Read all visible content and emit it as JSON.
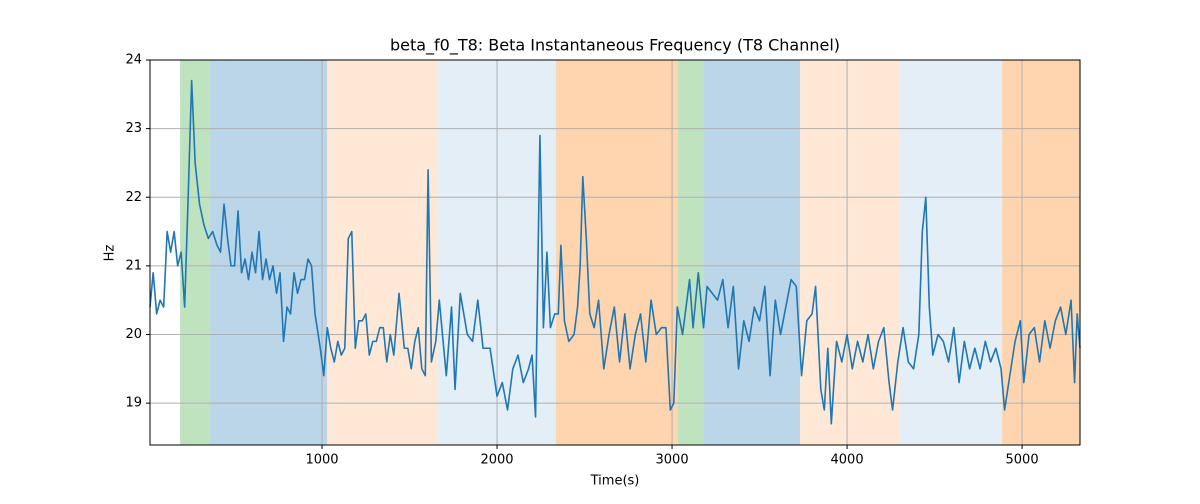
{
  "chart_data": {
    "type": "line",
    "title": "beta_f0_T8: Beta Instantaneous Frequency (T8 Channel)",
    "x_label": "Time(s)",
    "y_label": "Hz",
    "xlim": [
      17,
      5331
    ],
    "ylim": [
      18.39,
      24
    ],
    "xticks": [
      1000,
      2000,
      3000,
      4000,
      5000
    ],
    "yticks": [
      19,
      20,
      21,
      22,
      23,
      24
    ],
    "grid": true,
    "spans": [
      {
        "start": 189,
        "end": 360,
        "color": "#2ca02c",
        "opacity": 0.3
      },
      {
        "start": 360,
        "end": 1029,
        "color": "#1f77b4",
        "opacity": 0.3
      },
      {
        "start": 1029,
        "end": 1663,
        "color": "#ff7f0e",
        "opacity": 0.17
      },
      {
        "start": 1663,
        "end": 2337,
        "color": "#1f77b4",
        "opacity": 0.12
      },
      {
        "start": 2337,
        "end": 3034,
        "color": "#ff7f0e",
        "opacity": 0.33
      },
      {
        "start": 3034,
        "end": 3183,
        "color": "#2ca02c",
        "opacity": 0.3
      },
      {
        "start": 3183,
        "end": 3731,
        "color": "#1f77b4",
        "opacity": 0.3
      },
      {
        "start": 3731,
        "end": 4303,
        "color": "#ff7f0e",
        "opacity": 0.17
      },
      {
        "start": 4303,
        "end": 4886,
        "color": "#1f77b4",
        "opacity": 0.12
      },
      {
        "start": 4886,
        "end": 5331,
        "color": "#ff7f0e",
        "opacity": 0.33
      }
    ],
    "series": [
      {
        "name": "beta_f0_T8",
        "color": "#1f77b4",
        "x": [
          17,
          35,
          55,
          75,
          95,
          115,
          135,
          155,
          175,
          195,
          215,
          235,
          255,
          275,
          300,
          325,
          350,
          375,
          400,
          420,
          440,
          460,
          480,
          500,
          520,
          540,
          560,
          580,
          600,
          620,
          640,
          660,
          680,
          700,
          720,
          740,
          760,
          780,
          800,
          820,
          840,
          860,
          880,
          900,
          920,
          940,
          960,
          990,
          1010,
          1030,
          1050,
          1070,
          1090,
          1110,
          1130,
          1150,
          1170,
          1190,
          1210,
          1230,
          1250,
          1270,
          1290,
          1310,
          1330,
          1350,
          1370,
          1390,
          1410,
          1440,
          1470,
          1490,
          1510,
          1530,
          1550,
          1570,
          1590,
          1606,
          1625,
          1650,
          1670,
          1710,
          1740,
          1760,
          1790,
          1830,
          1860,
          1890,
          1920,
          1960,
          2000,
          2030,
          2060,
          2090,
          2120,
          2150,
          2180,
          2200,
          2220,
          2245,
          2265,
          2285,
          2305,
          2330,
          2350,
          2365,
          2385,
          2410,
          2440,
          2460,
          2475,
          2490,
          2510,
          2530,
          2555,
          2580,
          2610,
          2640,
          2670,
          2700,
          2730,
          2760,
          2790,
          2820,
          2850,
          2880,
          2910,
          2940,
          2965,
          2990,
          3010,
          3030,
          3060,
          3080,
          3100,
          3120,
          3150,
          3180,
          3200,
          3230,
          3260,
          3290,
          3320,
          3350,
          3380,
          3410,
          3440,
          3470,
          3500,
          3530,
          3560,
          3590,
          3620,
          3650,
          3680,
          3710,
          3740,
          3770,
          3800,
          3820,
          3850,
          3870,
          3890,
          3910,
          3940,
          3970,
          4000,
          4030,
          4060,
          4090,
          4120,
          4150,
          4180,
          4210,
          4240,
          4260,
          4290,
          4320,
          4350,
          4380,
          4410,
          4430,
          4450,
          4470,
          4490,
          4520,
          4550,
          4580,
          4610,
          4640,
          4670,
          4700,
          4730,
          4760,
          4790,
          4820,
          4850,
          4880,
          4900,
          4930,
          4960,
          4990,
          5010,
          5040,
          5070,
          5100,
          5130,
          5160,
          5190,
          5220,
          5250,
          5280,
          5300,
          5315,
          5331
        ],
        "values": [
          20.4,
          20.9,
          20.3,
          20.5,
          20.4,
          21.5,
          21.2,
          21.5,
          21.0,
          21.2,
          20.4,
          22.0,
          23.7,
          22.5,
          21.9,
          21.6,
          21.4,
          21.5,
          21.3,
          21.2,
          21.9,
          21.4,
          21.0,
          21.0,
          21.8,
          20.9,
          21.1,
          20.8,
          21.2,
          20.9,
          21.5,
          20.8,
          21.1,
          20.8,
          21.0,
          20.6,
          20.9,
          19.9,
          20.4,
          20.3,
          20.9,
          20.6,
          20.8,
          20.8,
          21.1,
          21.0,
          20.3,
          19.8,
          19.4,
          20.1,
          19.8,
          19.6,
          19.9,
          19.7,
          19.8,
          21.4,
          21.5,
          19.8,
          20.2,
          20.2,
          20.3,
          19.7,
          19.9,
          19.9,
          20.1,
          20.1,
          19.6,
          20.0,
          19.7,
          20.6,
          19.8,
          19.8,
          19.5,
          19.9,
          20.1,
          19.5,
          19.4,
          22.4,
          19.6,
          19.9,
          20.5,
          19.4,
          20.4,
          19.2,
          20.6,
          20.0,
          19.9,
          20.5,
          19.8,
          19.8,
          19.1,
          19.3,
          18.9,
          19.5,
          19.7,
          19.3,
          19.5,
          19.7,
          18.8,
          22.9,
          20.1,
          21.2,
          20.1,
          20.3,
          20.3,
          21.3,
          20.2,
          19.9,
          20.0,
          20.4,
          21.0,
          22.3,
          21.4,
          20.3,
          20.1,
          20.5,
          19.5,
          20.0,
          20.4,
          19.6,
          20.3,
          19.5,
          20.0,
          20.3,
          19.6,
          20.5,
          20.0,
          20.1,
          20.1,
          18.9,
          19.0,
          20.4,
          20.0,
          20.4,
          20.8,
          20.1,
          20.9,
          20.1,
          20.7,
          20.6,
          20.5,
          20.8,
          20.1,
          20.7,
          19.5,
          20.2,
          19.9,
          20.4,
          20.2,
          20.7,
          19.4,
          20.5,
          20.0,
          20.4,
          20.8,
          20.7,
          19.4,
          20.2,
          20.3,
          20.7,
          19.2,
          18.9,
          19.8,
          18.7,
          19.9,
          19.6,
          20.0,
          19.5,
          19.9,
          19.6,
          20.0,
          19.5,
          19.9,
          20.1,
          19.3,
          18.9,
          19.6,
          20.1,
          19.6,
          19.5,
          20.0,
          21.5,
          22.0,
          20.4,
          19.7,
          20.0,
          19.9,
          19.6,
          20.1,
          19.3,
          19.9,
          19.5,
          19.8,
          19.5,
          19.9,
          19.6,
          19.8,
          19.5,
          18.9,
          19.4,
          19.9,
          20.2,
          19.3,
          20.0,
          20.1,
          19.6,
          20.2,
          19.8,
          20.2,
          20.4,
          20.0,
          20.5,
          19.3,
          20.3,
          19.8
        ]
      }
    ]
  }
}
